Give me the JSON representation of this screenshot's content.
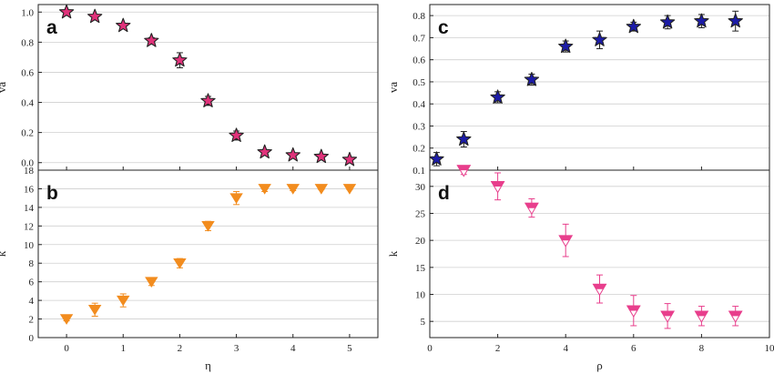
{
  "colors": {
    "panel_a_marker": "#e0327a",
    "panel_b_marker": "#f28c1e",
    "panel_c_marker": "#1c1ca8",
    "panel_d_marker": "#e83e8c",
    "marker_edge": "#222222",
    "grid": "#cfcfcf"
  },
  "chart_data": [
    {
      "id": "a",
      "panel_label": "a",
      "type": "scatter",
      "marker": "star",
      "ylabel": "va",
      "xlabel": "",
      "xlim": [
        -0.5,
        5.5
      ],
      "ylim": [
        -0.05,
        1.05
      ],
      "xticks": [
        "0",
        "1",
        "2",
        "3",
        "4",
        "5"
      ],
      "yticks": [
        "0.0",
        "0.2",
        "0.4",
        "0.6",
        "0.8",
        "1.0"
      ],
      "grid": true,
      "x": [
        0,
        0.5,
        1,
        1.5,
        2,
        2.5,
        3,
        3.5,
        4,
        4.5,
        5
      ],
      "y": [
        1.0,
        0.97,
        0.91,
        0.81,
        0.68,
        0.41,
        0.18,
        0.07,
        0.05,
        0.04,
        0.02
      ],
      "err": [
        0.01,
        0.01,
        0.015,
        0.02,
        0.05,
        0.03,
        0.03,
        0.01,
        0.005,
        0.005,
        0.005
      ]
    },
    {
      "id": "b",
      "panel_label": "b",
      "type": "scatter",
      "marker": "triangle-down",
      "ylabel": "k",
      "xlabel": "η",
      "xlim": [
        -0.5,
        5.5
      ],
      "ylim": [
        0,
        18
      ],
      "xticks": [
        "0",
        "1",
        "2",
        "3",
        "4",
        "5"
      ],
      "yticks": [
        "0",
        "2",
        "4",
        "6",
        "8",
        "10",
        "12",
        "14",
        "16",
        "18"
      ],
      "grid": true,
      "x": [
        0,
        0.5,
        1,
        1.5,
        2,
        2.5,
        3,
        3.5,
        4,
        4.5,
        5
      ],
      "y": [
        2,
        3,
        4,
        6,
        8,
        12,
        15,
        16,
        16,
        16,
        16
      ],
      "err": [
        0.2,
        0.7,
        0.7,
        0.4,
        0.5,
        0.5,
        0.7,
        0.3,
        0.2,
        0.1,
        0.1
      ]
    },
    {
      "id": "c",
      "panel_label": "c",
      "type": "scatter",
      "marker": "star",
      "ylabel": "va",
      "xlabel": "",
      "xlim": [
        0,
        10
      ],
      "ylim": [
        0.1,
        0.85
      ],
      "xticks": [
        "0",
        "2",
        "4",
        "6",
        "8",
        "10"
      ],
      "yticks": [
        "0.1",
        "0.2",
        "0.3",
        "0.4",
        "0.5",
        "0.6",
        "0.7",
        "0.8"
      ],
      "grid": true,
      "x": [
        0.2,
        1,
        2,
        3,
        4,
        5,
        6,
        7,
        8,
        9
      ],
      "y": [
        0.15,
        0.24,
        0.43,
        0.51,
        0.66,
        0.69,
        0.75,
        0.77,
        0.775,
        0.775
      ],
      "err": [
        0.03,
        0.035,
        0.025,
        0.025,
        0.025,
        0.04,
        0.02,
        0.03,
        0.03,
        0.045
      ]
    },
    {
      "id": "d",
      "panel_label": "d",
      "type": "scatter",
      "marker": "triangle-down-half",
      "ylabel": "k",
      "xlabel": "ρ",
      "xlim": [
        0,
        10
      ],
      "ylim": [
        2,
        33
      ],
      "xticks": [
        "0",
        "2",
        "4",
        "6",
        "8",
        "10"
      ],
      "yticks": [
        "5",
        "10",
        "15",
        "20",
        "25",
        "30"
      ],
      "grid": true,
      "x": [
        1,
        2,
        3,
        4,
        5,
        6,
        7,
        8,
        9
      ],
      "y": [
        33,
        30,
        26,
        20,
        11,
        7,
        6,
        6,
        6
      ],
      "err": [
        0.8,
        2.5,
        1.7,
        3.0,
        2.6,
        2.8,
        2.3,
        1.8,
        1.8
      ]
    }
  ]
}
